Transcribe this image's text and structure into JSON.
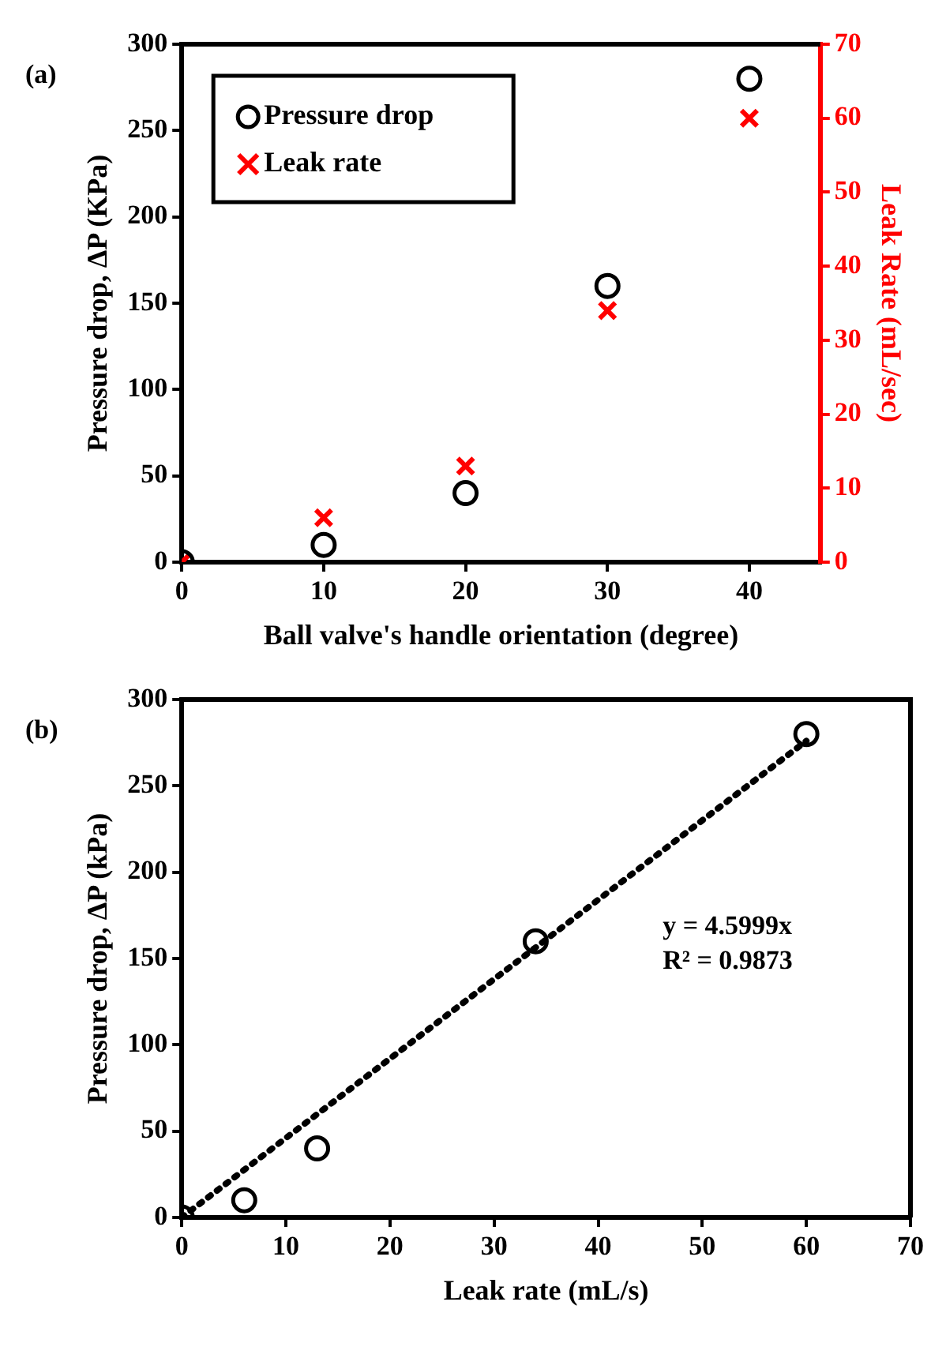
{
  "chart_data": [
    {
      "type": "scatter",
      "annotations": [
        "(a)"
      ],
      "xlabel": "Ball valve's handle orientation (degree)",
      "ylabel": "Pressure drop, ΔP (KPa)",
      "y2label": "Leak Rate (mL/sec)",
      "x": [
        0,
        10,
        20,
        30,
        40
      ],
      "series": [
        {
          "name": "Pressure drop",
          "color": "#000000",
          "marker": "circle",
          "values": [
            0,
            10,
            40,
            160,
            280
          ]
        },
        {
          "name": "Leak rate",
          "color": "#ff0000",
          "marker": "cross",
          "axis": "y2",
          "values": [
            0,
            6,
            13,
            34,
            60
          ]
        }
      ],
      "xlim": [
        0,
        45
      ],
      "xticks": [
        0,
        10,
        20,
        30,
        40
      ],
      "ylim": [
        0,
        300
      ],
      "yticks": [
        0,
        50,
        100,
        150,
        200,
        250,
        300
      ],
      "y2lim": [
        0,
        70
      ],
      "y2ticks": [
        0,
        10,
        20,
        30,
        40,
        50,
        60,
        70
      ],
      "grid": false,
      "legend": "top left"
    },
    {
      "type": "scatter",
      "annotations": [
        "(b)",
        "y = 4.5999x",
        "R² = 0.9873"
      ],
      "xlabel": "Leak rate (mL/s)",
      "ylabel": "Pressure drop, ΔP (kPa)",
      "x": [
        0,
        6,
        13,
        34,
        60
      ],
      "series": [
        {
          "color": "#000000",
          "marker": "circle",
          "values": [
            0,
            10,
            40,
            160,
            280
          ]
        },
        {
          "type": "line",
          "color": "#000000",
          "marker": "none",
          "line_style": "dotted",
          "x": [
            0,
            60
          ],
          "values": [
            0,
            276
          ]
        }
      ],
      "xlim": [
        0,
        70
      ],
      "xticks": [
        0,
        10,
        20,
        30,
        40,
        50,
        60,
        70
      ],
      "ylim": [
        0,
        300
      ],
      "yticks": [
        0,
        50,
        100,
        150,
        200,
        250,
        300
      ],
      "grid": false,
      "legend": false
    }
  ]
}
